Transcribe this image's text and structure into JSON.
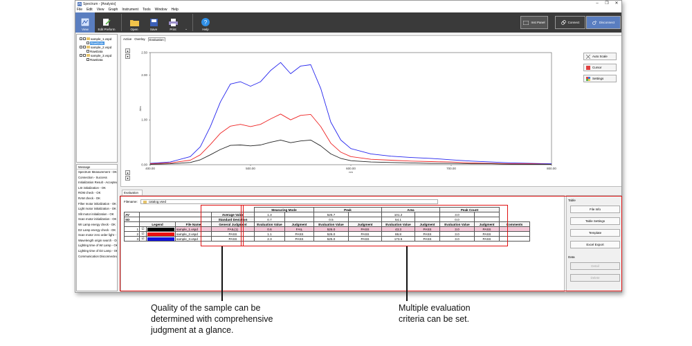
{
  "window": {
    "title": "Spectrum - [Analysis]",
    "min": "–",
    "max": "❐",
    "close": "✕"
  },
  "menu": [
    "File",
    "Edit",
    "View",
    "Graph",
    "Instrument",
    "Tools",
    "Window",
    "Help"
  ],
  "ribbon": {
    "view": "View",
    "edit": "Edit Preform",
    "open": "Open",
    "save": "Save",
    "print": "Print",
    "more": "⌄",
    "help": "Help",
    "panel": "Inst Panel",
    "connect": "Connect",
    "disconnect": "Disconnect"
  },
  "tree": [
    {
      "label": "sample_1.vspd",
      "child": "RawData"
    },
    {
      "label": "sample_2.vspd",
      "child": "RawData"
    },
    {
      "label": "sample_3.vspd",
      "child": "RawData"
    }
  ],
  "messages": {
    "header": "Message",
    "lines": [
      "Spectrum Measurement - OK",
      "Connection - Success",
      "Initialization Result - Accepted",
      "LSI initialization - OK",
      "ROM check - OK",
      "RAM check - OK",
      "Filter motor initialization - OK",
      "Light motor initialization - OK",
      "Slit motor initialization - OK",
      "Scan motor initialization - OK",
      "WI Lamp energy check - OK",
      "D2 Lamp energy check - OK",
      "Scan motor zero order light - OK",
      "Wavelength origin search - OK",
      "Lighting time of WI Lamp - OK",
      "Lighting time of D2 Lamp - OK",
      "Communication Disconnected"
    ]
  },
  "graph": {
    "tabs": [
      "Active",
      "Overlay",
      "Evaluation"
    ],
    "buttons": {
      "autoscale": "Auto Scale",
      "cursor": "Cursor",
      "settings": "Settings"
    },
    "mini": [
      "▴",
      "▾"
    ]
  },
  "chart_data": {
    "type": "line",
    "xlabel": "nm",
    "ylabel": "Abs",
    "xlim": [
      400,
      800
    ],
    "ylim": [
      0,
      2.5
    ],
    "xticks": [
      "400.00",
      "500.00",
      "600.00",
      "700.00",
      "800.00"
    ],
    "yticks": [
      "0.00",
      "1.00",
      "2.00",
      "2.50"
    ],
    "x": [
      400,
      420,
      440,
      450,
      460,
      470,
      480,
      490,
      500,
      510,
      520,
      530,
      540,
      550,
      560,
      570,
      580,
      590,
      600,
      620,
      640,
      660,
      680,
      700,
      720,
      740,
      760,
      780,
      800
    ],
    "series": [
      {
        "color": "#2222ee",
        "values": [
          0.03,
          0.06,
          0.18,
          0.4,
          0.85,
          1.4,
          1.8,
          1.85,
          1.75,
          1.85,
          2.1,
          2.28,
          2.03,
          2.2,
          2.23,
          1.7,
          0.95,
          0.55,
          0.36,
          0.24,
          0.19,
          0.16,
          0.14,
          0.11,
          0.08,
          0.06,
          0.04,
          0.03,
          0.02
        ]
      },
      {
        "color": "#ee2222",
        "values": [
          0.02,
          0.04,
          0.1,
          0.22,
          0.45,
          0.7,
          0.86,
          0.9,
          0.85,
          0.9,
          1.02,
          1.13,
          1.0,
          1.1,
          1.12,
          0.85,
          0.48,
          0.28,
          0.18,
          0.12,
          0.1,
          0.08,
          0.07,
          0.06,
          0.04,
          0.03,
          0.02,
          0.02,
          0.01
        ]
      },
      {
        "color": "#222222",
        "values": [
          0.01,
          0.02,
          0.05,
          0.11,
          0.22,
          0.34,
          0.43,
          0.44,
          0.42,
          0.44,
          0.5,
          0.55,
          0.49,
          0.53,
          0.55,
          0.42,
          0.24,
          0.14,
          0.09,
          0.06,
          0.05,
          0.04,
          0.03,
          0.03,
          0.02,
          0.02,
          0.01,
          0.01,
          0.01
        ]
      }
    ]
  },
  "eval": {
    "tab": "Evaluation",
    "filename_label": "Filename:",
    "filename": "catalog.vsed",
    "groups": {
      "measuring": "Measuring Mode",
      "peak": "Peak",
      "area": "Area",
      "count": "Peak Count"
    },
    "av": {
      "label": "AV",
      "title": "Average Value",
      "measuring": "1.3",
      "peak": "525.7",
      "area": "101.2",
      "count": "3.0"
    },
    "sd": {
      "label": "SD",
      "title": "Standard Deviation",
      "measuring": "0.7",
      "peak": "0.5",
      "area": "54.1",
      "count": "0.0"
    },
    "headers": {
      "legend": "Legend",
      "file": "File Name",
      "general": "General Judgment",
      "ev": "Evaluation Value",
      "judg": "Judgment",
      "comments": "Comments"
    },
    "rows": [
      {
        "n": "1",
        "check": "☑",
        "color": "#000000",
        "file": "sample_1.vspd",
        "general": "FAIL(1)",
        "m_ev": "0.6",
        "m_j": "FAIL",
        "p_ev": "526.0",
        "p_j": "PASS",
        "a_ev": "43.3",
        "a_j": "PASS",
        "c_ev": "3.0",
        "c_j": "PASS"
      },
      {
        "n": "2",
        "check": "☑",
        "color": "#ee1111",
        "file": "sample_2.vspd",
        "general": "PASS",
        "m_ev": "1.1",
        "m_j": "PASS",
        "p_ev": "526.0",
        "p_j": "PASS",
        "a_ev": "86.8",
        "a_j": "PASS",
        "c_ev": "3.0",
        "c_j": "PASS"
      },
      {
        "n": "3",
        "check": "☑",
        "color": "#1111dd",
        "file": "sample_3.vspd",
        "general": "PASS",
        "m_ev": "2.3",
        "m_j": "PASS",
        "p_ev": "525.0",
        "p_j": "PASS",
        "a_ev": "173.5",
        "a_j": "PASS",
        "c_ev": "3.0",
        "c_j": "PASS"
      }
    ]
  },
  "side": {
    "table_label": "Table",
    "file_info": "File Info",
    "table_settings": "Table Settings",
    "template": "Template",
    "excel": "Excel Export",
    "data_label": "Data",
    "detail": "Detail",
    "delete": "Delete"
  },
  "captions": {
    "left": "Quality of the sample can be\ndetermined with comprehensive\njudgment at a glance.",
    "right": "Multiple evaluation\ncriteria can be set."
  }
}
